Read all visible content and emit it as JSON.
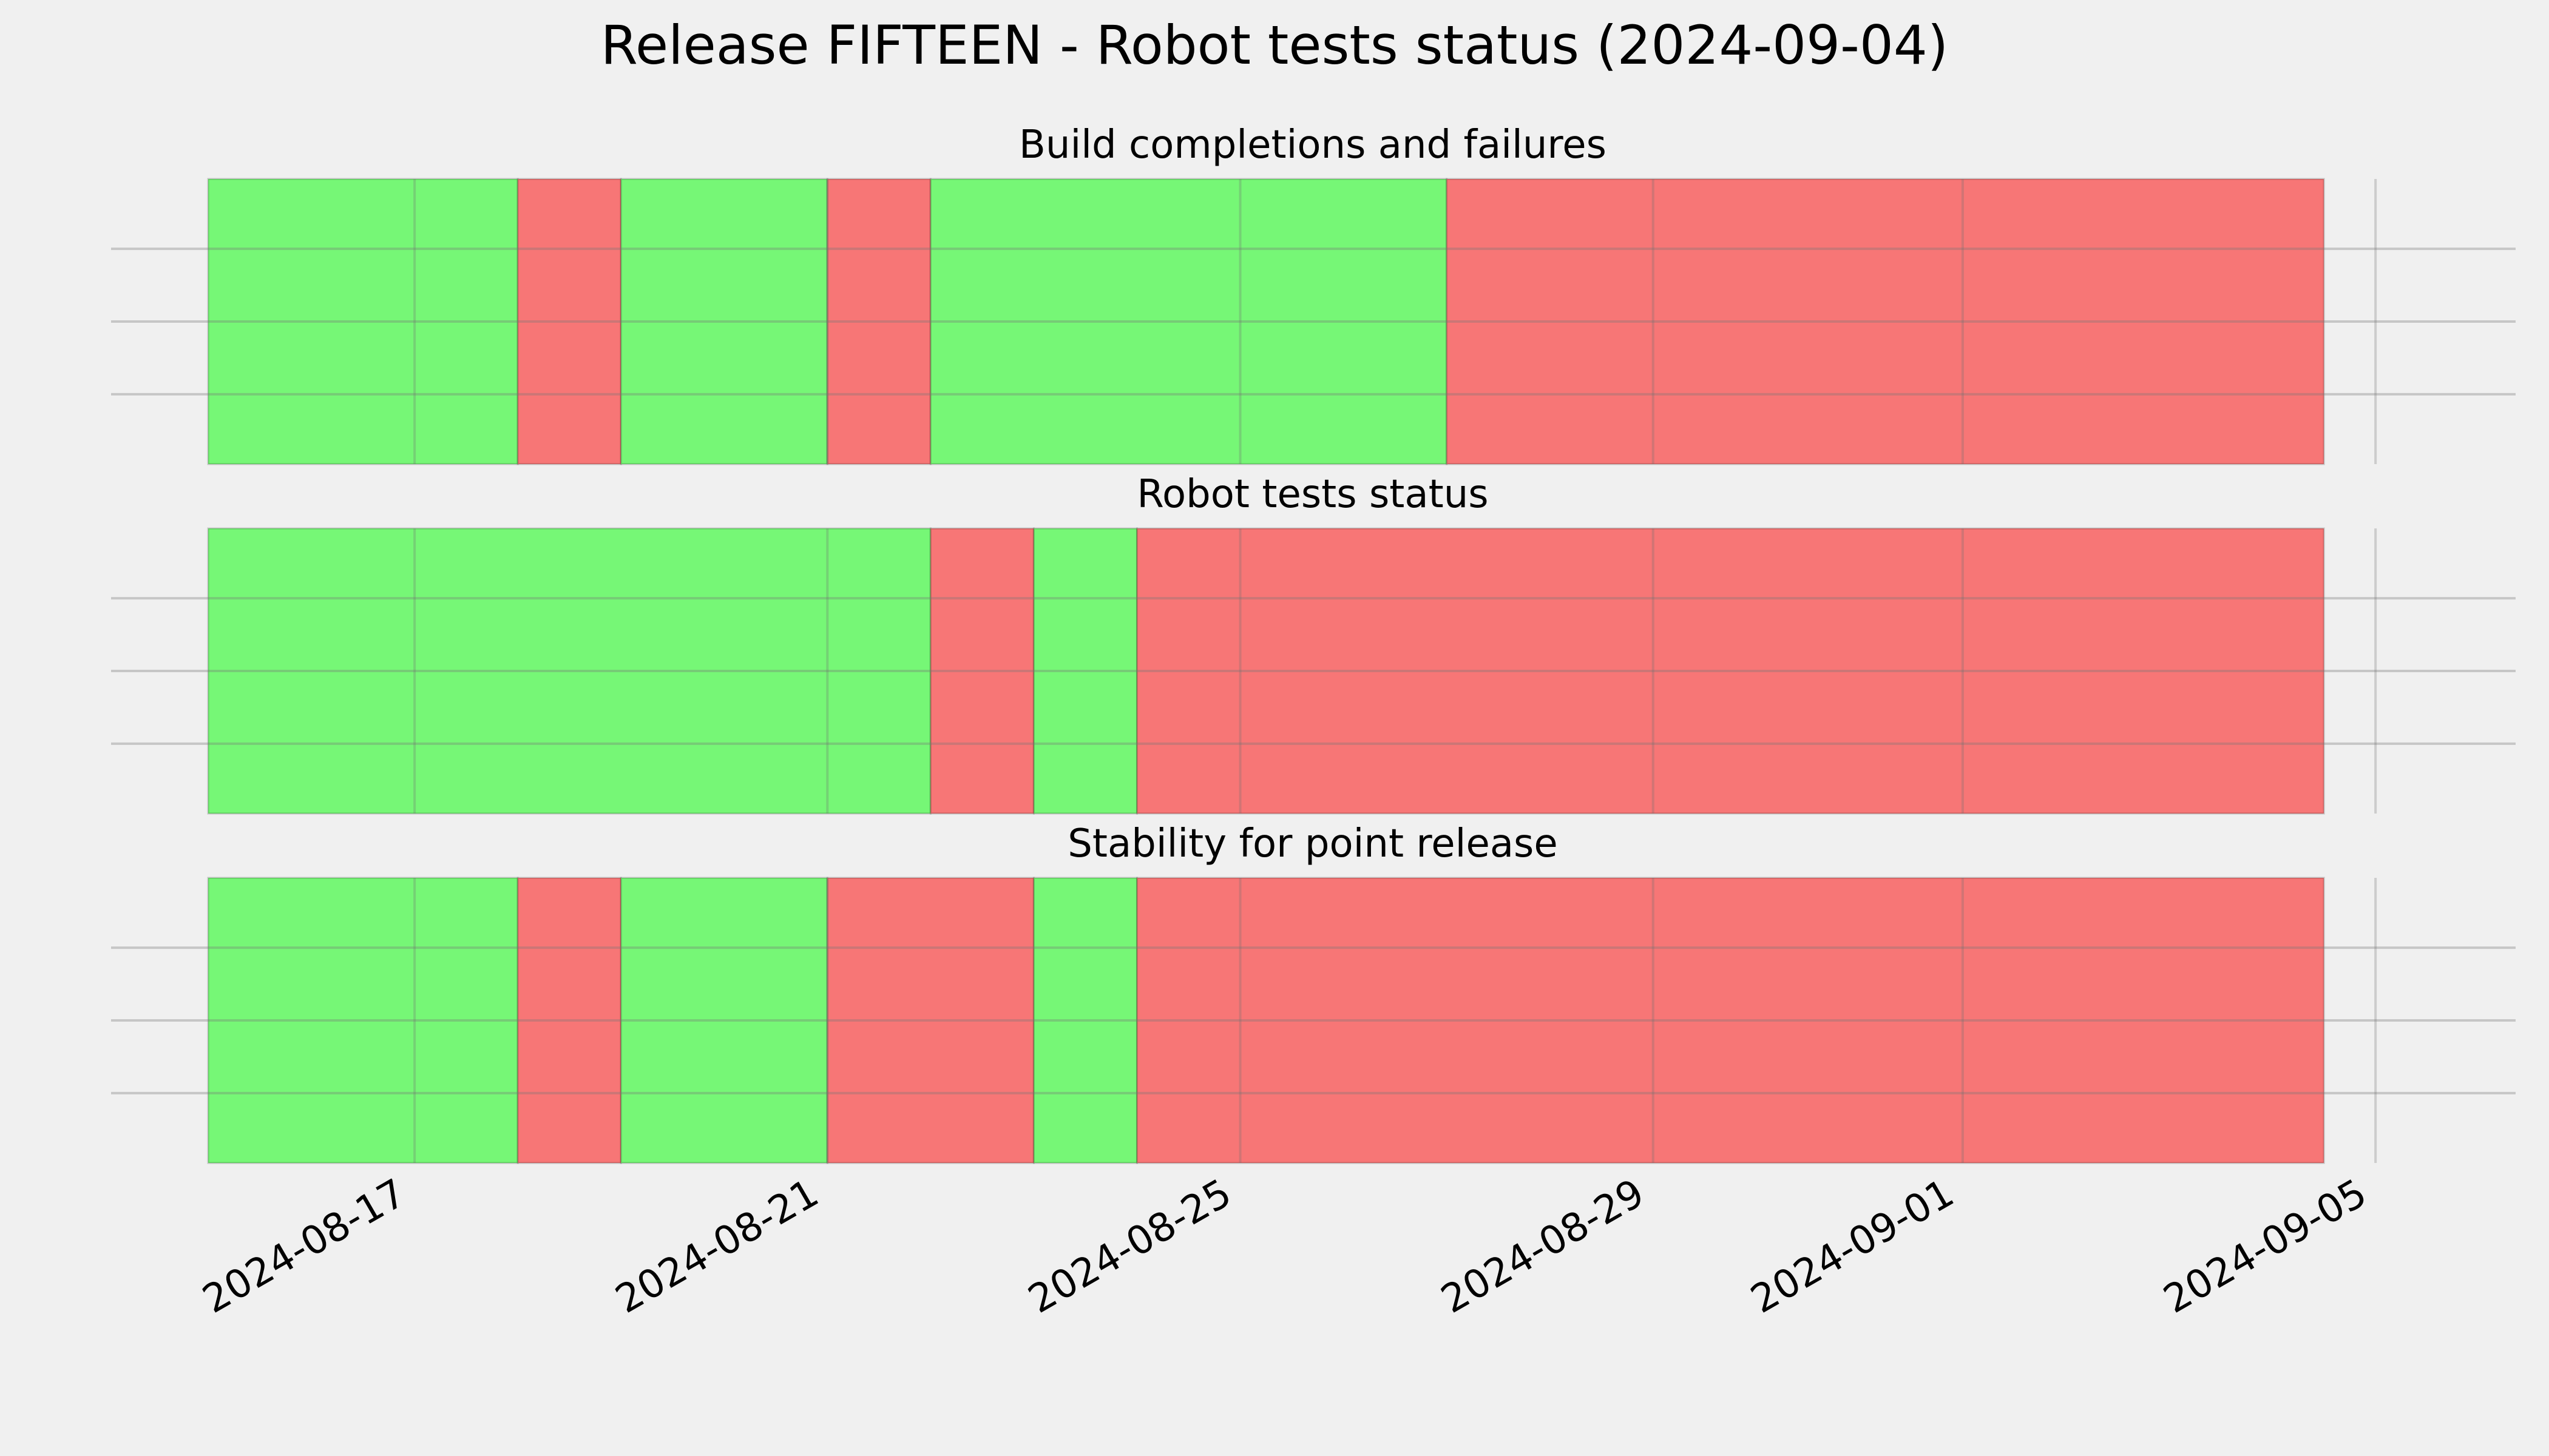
{
  "chart_data": {
    "type": "timeline",
    "title": "Release FIFTEEN - Robot tests status (2024-09-04)",
    "x_type": "date",
    "xlim": [
      "2024-08-15",
      "2024-09-05 10:00"
    ],
    "x_ticks": [
      "2024-08-17",
      "2024-08-21",
      "2024-08-25",
      "2024-08-29",
      "2024-09-01",
      "2024-09-05"
    ],
    "grid": true,
    "colors": {
      "pass": "#76f776",
      "fail": "#f77676",
      "background": "#f0f0f0",
      "grid": "#cbcbcb"
    },
    "panels": [
      {
        "title": "Build completions and failures",
        "segments": [
          {
            "start": "2024-08-15",
            "end": "2024-08-18",
            "status": "pass"
          },
          {
            "start": "2024-08-18",
            "end": "2024-08-19",
            "status": "fail"
          },
          {
            "start": "2024-08-19",
            "end": "2024-08-21",
            "status": "pass"
          },
          {
            "start": "2024-08-21",
            "end": "2024-08-22",
            "status": "fail"
          },
          {
            "start": "2024-08-22",
            "end": "2024-08-27",
            "status": "pass"
          },
          {
            "start": "2024-08-27",
            "end": "2024-09-04 12:00",
            "status": "fail"
          }
        ]
      },
      {
        "title": "Robot tests status",
        "segments": [
          {
            "start": "2024-08-15",
            "end": "2024-08-22",
            "status": "pass"
          },
          {
            "start": "2024-08-22",
            "end": "2024-08-23",
            "status": "fail"
          },
          {
            "start": "2024-08-23",
            "end": "2024-08-24",
            "status": "pass"
          },
          {
            "start": "2024-08-24",
            "end": "2024-09-04 12:00",
            "status": "fail"
          }
        ]
      },
      {
        "title": "Stability for point release",
        "segments": [
          {
            "start": "2024-08-15",
            "end": "2024-08-18",
            "status": "pass"
          },
          {
            "start": "2024-08-18",
            "end": "2024-08-19",
            "status": "fail"
          },
          {
            "start": "2024-08-19",
            "end": "2024-08-21",
            "status": "pass"
          },
          {
            "start": "2024-08-21",
            "end": "2024-08-23",
            "status": "fail"
          },
          {
            "start": "2024-08-23",
            "end": "2024-08-24",
            "status": "pass"
          },
          {
            "start": "2024-08-24",
            "end": "2024-09-04 12:00",
            "status": "fail"
          }
        ]
      }
    ]
  }
}
